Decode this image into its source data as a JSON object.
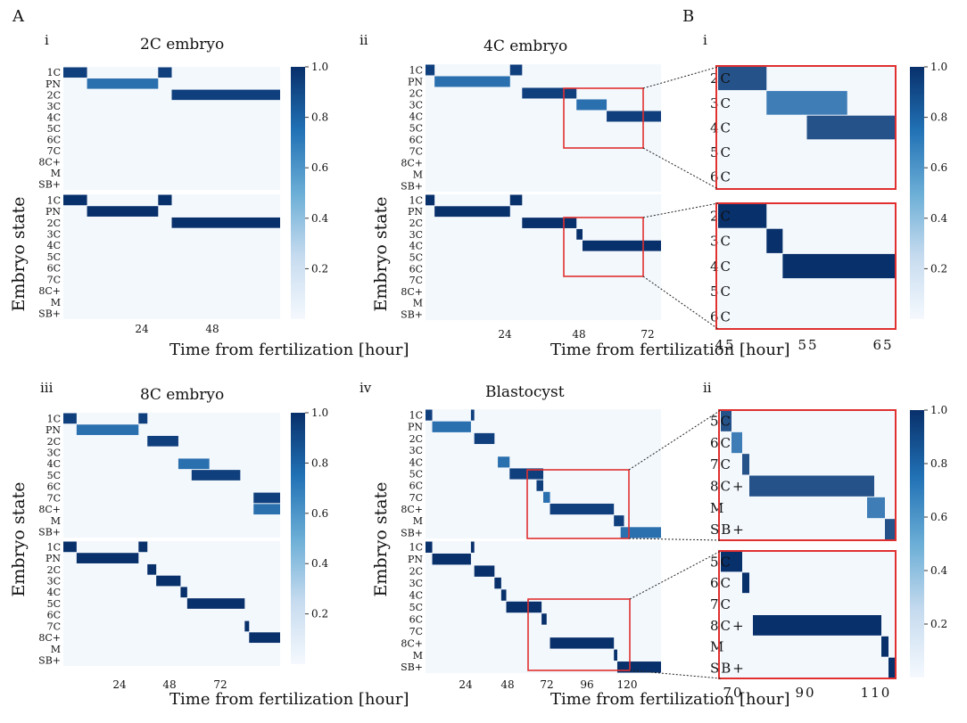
{
  "labels": {
    "A": "A",
    "B": "B",
    "i": "i",
    "ii": "ii",
    "iii": "iii",
    "iv": "iv"
  },
  "colorscale": {
    "low": "#f5f9fe",
    "mid": "#4d94c6",
    "high": "#08306b",
    "ticks": [
      "0.2",
      "0.4",
      "0.6",
      "0.8",
      "1.0"
    ]
  },
  "chart_data": [
    {
      "id": "Ai",
      "type": "heatmap",
      "title": "2C embryo",
      "panel_label": "i",
      "xlabel": "Time from fertilization [hour]",
      "ylabel": "Embryo state",
      "xticks": [
        "24",
        "48"
      ],
      "xlim": [
        0,
        64
      ],
      "states": [
        "1C",
        "PN",
        "2C",
        "3C",
        "4C",
        "5C",
        "6C",
        "7C",
        "8C+",
        "M",
        "SB+"
      ],
      "predicted": [
        {
          "state": "1C",
          "start": 0,
          "end": 7
        },
        {
          "state": "PN",
          "start": 7,
          "end": 28
        },
        {
          "state": "1C",
          "start": 28,
          "end": 32
        },
        {
          "state": "2C",
          "start": 32,
          "end": 64
        }
      ],
      "ground_truth": [
        {
          "state": "1C",
          "start": 0,
          "end": 7
        },
        {
          "state": "PN",
          "start": 7,
          "end": 28
        },
        {
          "state": "1C",
          "start": 28,
          "end": 32
        },
        {
          "state": "2C",
          "start": 32,
          "end": 64
        }
      ]
    },
    {
      "id": "Aii",
      "type": "heatmap",
      "title": "4C embryo",
      "panel_label": "ii",
      "xlabel": "Time from fertilization [hour]",
      "ylabel": "Embryo state",
      "xticks": [
        "24",
        "48",
        "72"
      ],
      "xlim": [
        0,
        78
      ],
      "states": [
        "1C",
        "PN",
        "2C",
        "3C",
        "4C",
        "5C",
        "6C",
        "7C",
        "8C+",
        "M",
        "SB+"
      ],
      "predicted": [
        {
          "state": "1C",
          "start": 0,
          "end": 3
        },
        {
          "state": "PN",
          "start": 3,
          "end": 28
        },
        {
          "state": "1C",
          "start": 28,
          "end": 32
        },
        {
          "state": "2C",
          "start": 32,
          "end": 50
        },
        {
          "state": "3C",
          "start": 50,
          "end": 60
        },
        {
          "state": "4C",
          "start": 60,
          "end": 78
        }
      ],
      "ground_truth": [
        {
          "state": "1C",
          "start": 0,
          "end": 3
        },
        {
          "state": "PN",
          "start": 3,
          "end": 28
        },
        {
          "state": "1C",
          "start": 28,
          "end": 32
        },
        {
          "state": "2C",
          "start": 32,
          "end": 50
        },
        {
          "state": "3C",
          "start": 50,
          "end": 52
        },
        {
          "state": "4C",
          "start": 52,
          "end": 78
        }
      ]
    },
    {
      "id": "Aiii",
      "type": "heatmap",
      "title": "8C embryo",
      "panel_label": "iii",
      "xlabel": "Time from fertilization [hour]",
      "ylabel": "Embryo state",
      "xticks": [
        "24",
        "48",
        "72"
      ],
      "xlim": [
        0,
        98
      ],
      "states": [
        "1C",
        "PN",
        "2C",
        "3C",
        "4C",
        "5C",
        "6C",
        "7C",
        "8C+",
        "M",
        "SB+"
      ],
      "predicted": [
        {
          "state": "1C",
          "start": 0,
          "end": 6
        },
        {
          "state": "PN",
          "start": 6,
          "end": 34
        },
        {
          "state": "1C",
          "start": 34,
          "end": 38
        },
        {
          "state": "2C",
          "start": 38,
          "end": 52
        },
        {
          "state": "4C",
          "start": 52,
          "end": 66
        },
        {
          "state": "5C",
          "start": 58,
          "end": 80
        },
        {
          "state": "7C",
          "start": 86,
          "end": 98
        },
        {
          "state": "8C+",
          "start": 86,
          "end": 98
        }
      ],
      "ground_truth": [
        {
          "state": "1C",
          "start": 0,
          "end": 6
        },
        {
          "state": "PN",
          "start": 6,
          "end": 34
        },
        {
          "state": "1C",
          "start": 34,
          "end": 38
        },
        {
          "state": "2C",
          "start": 38,
          "end": 42
        },
        {
          "state": "3C",
          "start": 42,
          "end": 53
        },
        {
          "state": "4C",
          "start": 53,
          "end": 56
        },
        {
          "state": "5C",
          "start": 56,
          "end": 82
        },
        {
          "state": "7C",
          "start": 82,
          "end": 84
        },
        {
          "state": "8C+",
          "start": 84,
          "end": 98
        }
      ]
    },
    {
      "id": "Aiv",
      "type": "heatmap",
      "title": "Blastocyst",
      "panel_label": "iv",
      "xlabel": "Time from fertilization [hour]",
      "ylabel": "Embryo state",
      "xticks": [
        "24",
        "48",
        "72",
        "96",
        "120"
      ],
      "xlim": [
        0,
        140
      ],
      "states": [
        "1C",
        "PN",
        "2C",
        "3C",
        "4C",
        "5C",
        "6C",
        "7C",
        "8C+",
        "M",
        "SB+"
      ],
      "predicted": [
        {
          "state": "1C",
          "start": 0,
          "end": 4
        },
        {
          "state": "PN",
          "start": 4,
          "end": 27
        },
        {
          "state": "1C",
          "start": 27,
          "end": 29
        },
        {
          "state": "2C",
          "start": 29,
          "end": 41
        },
        {
          "state": "4C",
          "start": 43,
          "end": 50
        },
        {
          "state": "5C",
          "start": 50,
          "end": 70
        },
        {
          "state": "6C",
          "start": 66,
          "end": 70
        },
        {
          "state": "7C",
          "start": 70,
          "end": 74
        },
        {
          "state": "8C+",
          "start": 74,
          "end": 112
        },
        {
          "state": "M",
          "start": 112,
          "end": 118
        },
        {
          "state": "SB+",
          "start": 116,
          "end": 140
        }
      ],
      "ground_truth": [
        {
          "state": "1C",
          "start": 0,
          "end": 4
        },
        {
          "state": "PN",
          "start": 4,
          "end": 27
        },
        {
          "state": "1C",
          "start": 27,
          "end": 29
        },
        {
          "state": "2C",
          "start": 29,
          "end": 41
        },
        {
          "state": "3C",
          "start": 41,
          "end": 45
        },
        {
          "state": "4C",
          "start": 45,
          "end": 48
        },
        {
          "state": "5C",
          "start": 48,
          "end": 69
        },
        {
          "state": "6C",
          "start": 69,
          "end": 72
        },
        {
          "state": "8C+",
          "start": 74,
          "end": 112
        },
        {
          "state": "M",
          "start": 112,
          "end": 114
        },
        {
          "state": "SB+",
          "start": 114,
          "end": 140
        }
      ]
    },
    {
      "id": "Bi",
      "type": "heatmap",
      "panel_label": "i",
      "xticks": [
        "45",
        "55",
        "65"
      ],
      "xlim": [
        44,
        66
      ],
      "states": [
        "2C",
        "3C",
        "4C",
        "5C",
        "6C"
      ],
      "predicted": [
        {
          "state": "2C",
          "start": 44,
          "end": 50
        },
        {
          "state": "3C",
          "start": 50,
          "end": 60
        },
        {
          "state": "4C",
          "start": 55,
          "end": 66
        }
      ],
      "ground_truth": [
        {
          "state": "2C",
          "start": 44,
          "end": 50
        },
        {
          "state": "3C",
          "start": 50,
          "end": 52
        },
        {
          "state": "4C",
          "start": 52,
          "end": 66
        }
      ]
    },
    {
      "id": "Bii",
      "type": "heatmap",
      "panel_label": "ii",
      "xticks": [
        "70",
        "90",
        "110"
      ],
      "xlim": [
        67,
        116
      ],
      "states": [
        "5C",
        "6C",
        "7C",
        "8C+",
        "M",
        "SB+"
      ],
      "predicted": [
        {
          "state": "5C",
          "start": 67,
          "end": 70
        },
        {
          "state": "6C",
          "start": 70,
          "end": 73
        },
        {
          "state": "7C",
          "start": 73,
          "end": 75
        },
        {
          "state": "8C+",
          "start": 75,
          "end": 110
        },
        {
          "state": "M",
          "start": 108,
          "end": 113
        },
        {
          "state": "SB+",
          "start": 113,
          "end": 116
        }
      ],
      "ground_truth": [
        {
          "state": "5C",
          "start": 67,
          "end": 73
        },
        {
          "state": "6C",
          "start": 73,
          "end": 75
        },
        {
          "state": "8C+",
          "start": 76,
          "end": 112
        },
        {
          "state": "M",
          "start": 112,
          "end": 114
        },
        {
          "state": "SB+",
          "start": 114,
          "end": 116
        }
      ]
    }
  ]
}
